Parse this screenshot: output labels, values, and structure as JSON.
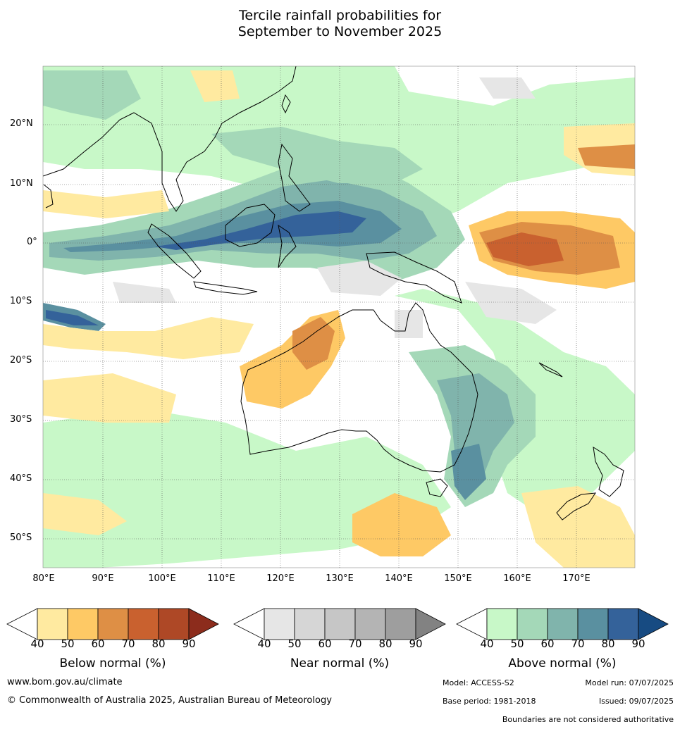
{
  "title": {
    "line1": "Tercile rainfall probabilities for",
    "line2": "September to November 2025"
  },
  "map": {
    "lat_labels": [
      "20°N",
      "10°N",
      "0°",
      "10°S",
      "20°S",
      "30°S",
      "40°S",
      "50°S"
    ],
    "lon_labels": [
      "80°E",
      "90°E",
      "100°E",
      "110°E",
      "120°E",
      "130°E",
      "140°E",
      "150°E",
      "160°E",
      "170°E"
    ]
  },
  "legends": {
    "below": {
      "title": "Below normal (%)",
      "ticks": [
        "40",
        "50",
        "60",
        "70",
        "80",
        "90"
      ],
      "colors": [
        "#ffffff",
        "#ffeaa0",
        "#fec965",
        "#de8f45",
        "#c9612f",
        "#ae4826",
        "#8c2c1c"
      ]
    },
    "near": {
      "title": "Near normal (%)",
      "ticks": [
        "40",
        "50",
        "60",
        "70",
        "80",
        "90"
      ],
      "colors": [
        "#ffffff",
        "#e6e6e6",
        "#d6d6d6",
        "#c6c6c6",
        "#b4b4b4",
        "#9e9e9e",
        "#828282"
      ]
    },
    "above": {
      "title": "Above normal (%)",
      "ticks": [
        "40",
        "50",
        "60",
        "70",
        "80",
        "90"
      ],
      "colors": [
        "#ffffff",
        "#c8f8c8",
        "#a4d8b8",
        "#80b4ac",
        "#5a90a0",
        "#34629a",
        "#174b82"
      ]
    }
  },
  "footer": {
    "website": "www.bom.gov.au/climate",
    "copyright": "© Commonwealth of Australia 2025, Australian Bureau of Meteorology",
    "model": "Model: ACCESS-S2",
    "model_run": "Model run: 07/07/2025",
    "base_period": "Base period: 1981-2018",
    "issued": "Issued: 09/07/2025",
    "boundaries": "Boundaries are not considered authoritative"
  }
}
